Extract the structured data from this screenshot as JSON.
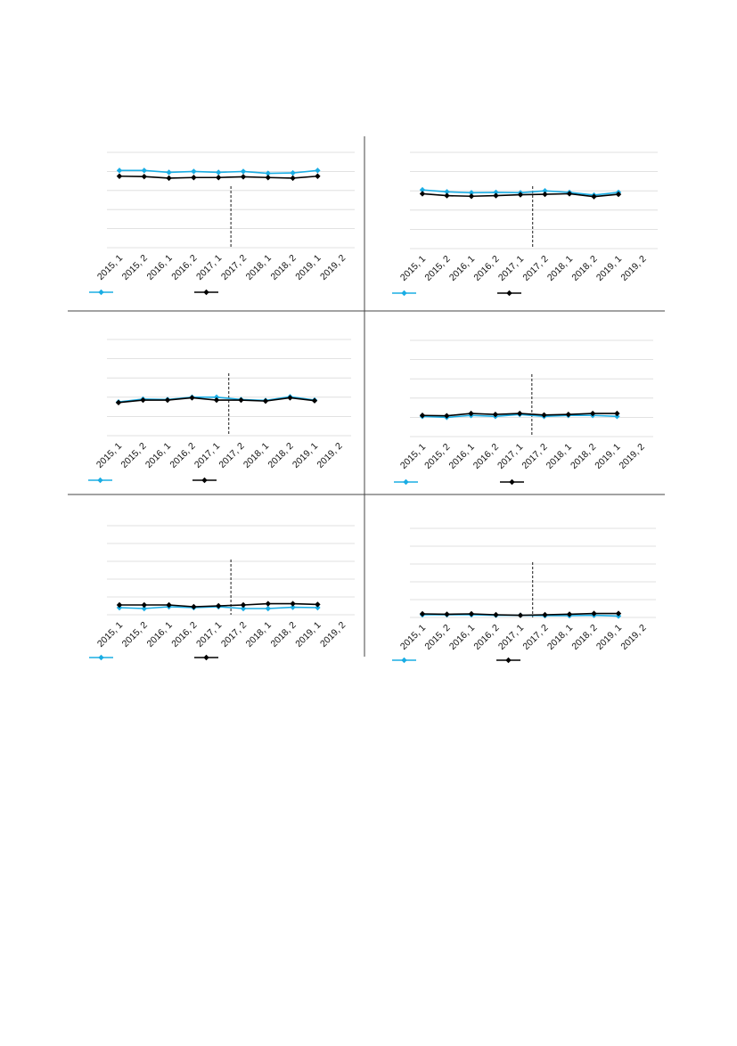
{
  "colors": {
    "series_a": "#1AADE4",
    "series_b": "#000000",
    "grid": "#d9d9d9",
    "divider": "#444444"
  },
  "chart_data": [
    {
      "type": "line",
      "categories": [
        "2015, 1",
        "2015, 2",
        "2016, 1",
        "2016, 2",
        "2017, 1",
        "2017, 2",
        "2018, 1",
        "2018, 2",
        "2019, 1",
        "2019, 2"
      ],
      "ylim": [
        0,
        5
      ],
      "grid": true,
      "legend": "bottom-left",
      "marker_line_between": [
        "2017, 1",
        "2017, 2"
      ],
      "series": [
        {
          "values": [
            4.05,
            4.05,
            3.95,
            4.0,
            3.95,
            4.0,
            3.9,
            3.92,
            4.05,
            null
          ]
        },
        {
          "values": [
            3.75,
            3.73,
            3.65,
            3.68,
            3.68,
            3.72,
            3.68,
            3.65,
            3.75,
            null
          ]
        }
      ]
    },
    {
      "type": "line",
      "categories": [
        "2015, 1",
        "2015, 2",
        "2016, 1",
        "2016, 2",
        "2017, 1",
        "2017, 2",
        "2018, 1",
        "2018, 2",
        "2019, 1",
        "2019, 2"
      ],
      "ylim": [
        0,
        5
      ],
      "grid": true,
      "legend": "bottom-left",
      "marker_line_between": [
        "2017, 1",
        "2017, 2"
      ],
      "series": [
        {
          "values": [
            3.05,
            2.95,
            2.9,
            2.92,
            2.9,
            3.0,
            2.92,
            2.78,
            2.92,
            null
          ]
        },
        {
          "values": [
            2.85,
            2.75,
            2.72,
            2.75,
            2.8,
            2.82,
            2.85,
            2.7,
            2.82,
            null
          ]
        }
      ]
    },
    {
      "type": "line",
      "categories": [
        "2015, 1",
        "2015, 2",
        "2016, 1",
        "2016, 2",
        "2017, 1",
        "2017, 2",
        "2018, 1",
        "2018, 2",
        "2019, 1",
        "2019, 2"
      ],
      "ylim": [
        0,
        5
      ],
      "grid": true,
      "legend": "bottom-left",
      "marker_line_between": [
        "2017, 1",
        "2017, 2"
      ],
      "series": [
        {
          "values": [
            1.75,
            1.9,
            1.88,
            2.0,
            2.0,
            1.88,
            1.83,
            2.02,
            1.85,
            null
          ]
        },
        {
          "values": [
            1.72,
            1.85,
            1.85,
            1.97,
            1.85,
            1.85,
            1.8,
            1.97,
            1.82,
            null
          ]
        }
      ]
    },
    {
      "type": "line",
      "categories": [
        "2015, 1",
        "2015, 2",
        "2016, 1",
        "2016, 2",
        "2017, 1",
        "2017, 2",
        "2018, 1",
        "2018, 2",
        "2019, 1",
        "2019, 2"
      ],
      "ylim": [
        0,
        5
      ],
      "grid": true,
      "legend": "bottom-left",
      "marker_line_between": [
        "2017, 1",
        "2017, 2"
      ],
      "series": [
        {
          "values": [
            1.05,
            1.0,
            1.1,
            1.05,
            1.15,
            1.05,
            1.1,
            1.1,
            1.05,
            null
          ]
        },
        {
          "values": [
            1.1,
            1.08,
            1.2,
            1.15,
            1.2,
            1.12,
            1.15,
            1.2,
            1.2,
            null
          ]
        }
      ]
    },
    {
      "type": "line",
      "categories": [
        "2015, 1",
        "2015, 2",
        "2016, 1",
        "2016, 2",
        "2017, 1",
        "2017, 2",
        "2018, 1",
        "2018, 2",
        "2019, 1",
        "2019, 2"
      ],
      "ylim": [
        0,
        5
      ],
      "grid": true,
      "legend": "bottom-left",
      "marker_line_between": [
        "2017, 1",
        "2017, 2"
      ],
      "series": [
        {
          "values": [
            0.4,
            0.35,
            0.45,
            0.4,
            0.45,
            0.35,
            0.35,
            0.42,
            0.4,
            null
          ]
        },
        {
          "values": [
            0.55,
            0.55,
            0.55,
            0.45,
            0.5,
            0.55,
            0.62,
            0.62,
            0.58,
            null
          ]
        }
      ]
    },
    {
      "type": "line",
      "categories": [
        "2015, 1",
        "2015, 2",
        "2016, 1",
        "2016, 2",
        "2017, 1",
        "2017, 2",
        "2018, 1",
        "2018, 2",
        "2019, 1",
        "2019, 2"
      ],
      "ylim": [
        0,
        5
      ],
      "grid": true,
      "legend": "bottom-left",
      "marker_line_between": [
        "2017, 1",
        "2017, 2"
      ],
      "series": [
        {
          "values": [
            0.15,
            0.15,
            0.15,
            0.12,
            0.12,
            0.1,
            0.1,
            0.12,
            0.08,
            null
          ]
        },
        {
          "values": [
            0.2,
            0.18,
            0.2,
            0.15,
            0.12,
            0.15,
            0.18,
            0.22,
            0.22,
            null
          ]
        }
      ]
    }
  ]
}
